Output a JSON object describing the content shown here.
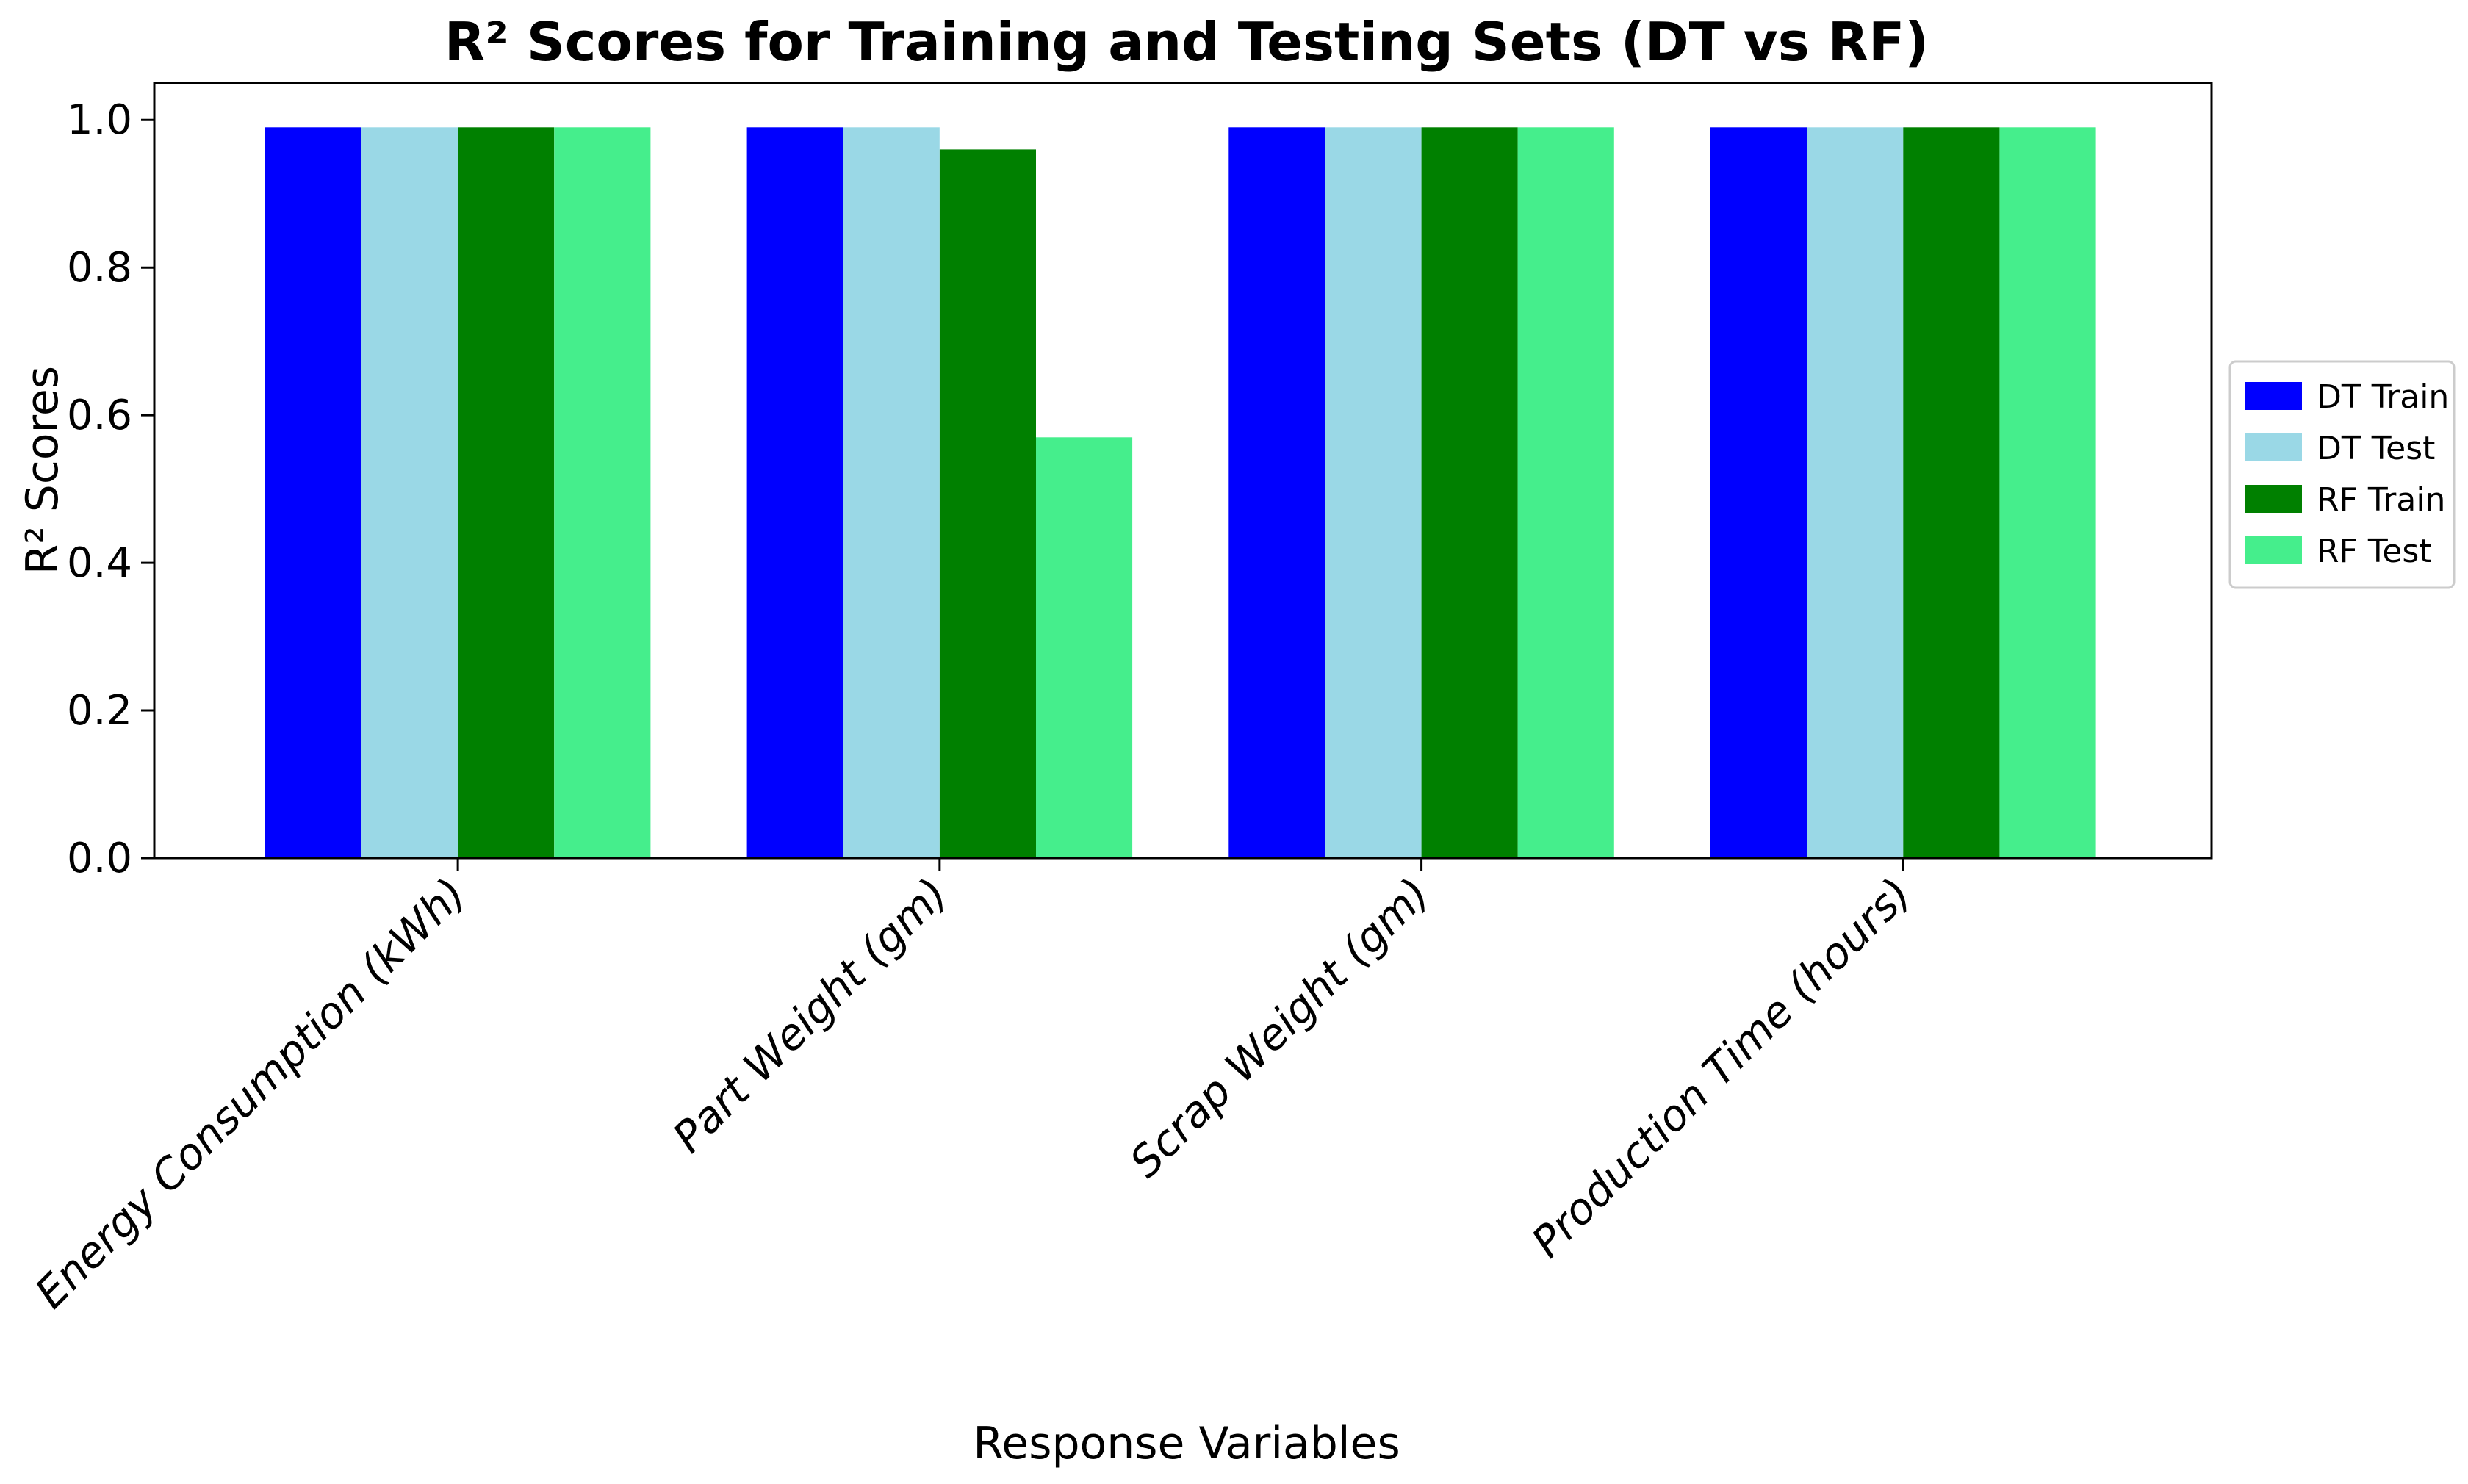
{
  "chart_data": {
    "type": "bar",
    "title": "R² Scores for Training and Testing Sets (DT vs RF)",
    "xlabel": "Response Variables",
    "ylabel": "R² Scores",
    "ylim": [
      0,
      1.05
    ],
    "yticks": [
      "0.0",
      "0.2",
      "0.4",
      "0.6",
      "0.8",
      "1.0"
    ],
    "ytick_values": [
      0,
      0.2,
      0.4,
      0.6,
      0.8,
      1.0
    ],
    "grid": false,
    "legend_position": "right",
    "categories": [
      "Energy Consumption (kWh)",
      "Part Weight (gm)",
      "Scrap Weight (gm)",
      "Production Time (hours)"
    ],
    "series": [
      {
        "name": "DT Train",
        "color": "#0000ff",
        "values": [
          0.99,
          0.99,
          0.99,
          0.99
        ]
      },
      {
        "name": "DT Test",
        "color": "#9ad8e6",
        "values": [
          0.99,
          0.99,
          0.99,
          0.99
        ]
      },
      {
        "name": "RF Train",
        "color": "#008000",
        "values": [
          0.99,
          0.96,
          0.99,
          0.99
        ]
      },
      {
        "name": "RF Test",
        "color": "#45ee8c",
        "values": [
          0.99,
          0.57,
          0.99,
          0.99
        ]
      }
    ]
  }
}
